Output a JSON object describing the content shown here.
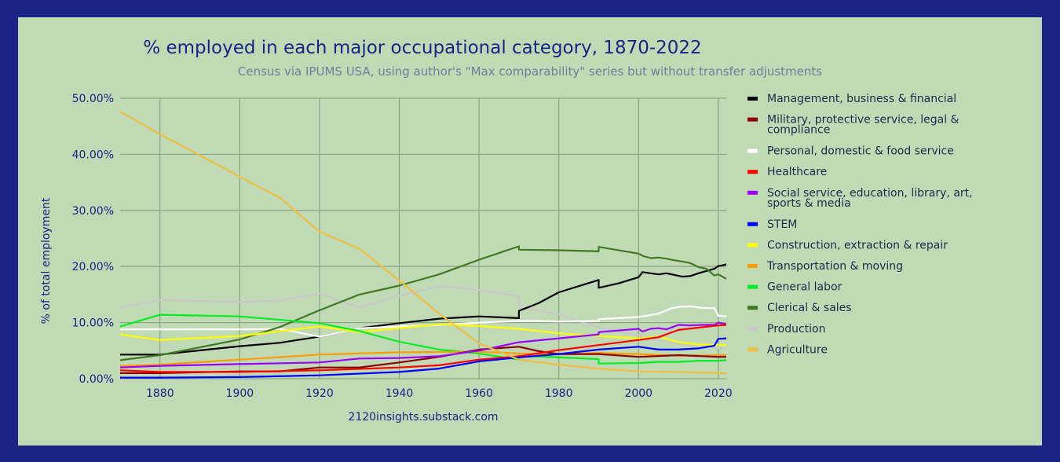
{
  "colors": {
    "page_border": "#1c2386",
    "plot_background": "#c1dab6",
    "title": "#1c2386",
    "subtitle": "#6f7f9a"
  },
  "chart_data": {
    "type": "line",
    "title": "% employed in each major occupational category, 1870-2022",
    "subtitle": "Census via IPUMS USA, using author's \"Max comparability\" series but without transfer adjustments",
    "ylabel": "% of total employment",
    "xlabel": "",
    "credit": "2120insights.substack.com",
    "xlim": [
      1870,
      2022
    ],
    "ylim": [
      0,
      50
    ],
    "x_ticks": [
      1880,
      1900,
      1920,
      1940,
      1960,
      1980,
      2000,
      2020
    ],
    "x_tick_labels": [
      "1880",
      "1900",
      "1920",
      "1940",
      "1960",
      "1980",
      "2000",
      "2020"
    ],
    "y_ticks": [
      0,
      10,
      20,
      30,
      40,
      50
    ],
    "y_tick_labels": [
      "0.00%",
      "10.00%",
      "20.00%",
      "30.00%",
      "40.00%",
      "50.00%"
    ],
    "grid": true,
    "legend_position": "right",
    "series": [
      {
        "name": "Management, business & financial",
        "legend_lines": [
          "Management, business & financial"
        ],
        "color": "#000000",
        "points": [
          [
            1870,
            4.3
          ],
          [
            1880,
            4.3
          ],
          [
            1900,
            5.8
          ],
          [
            1910,
            6.4
          ],
          [
            1920,
            7.5
          ],
          [
            1930,
            9.0
          ],
          [
            1940,
            9.9
          ],
          [
            1950,
            10.7
          ],
          [
            1960,
            11.1
          ],
          [
            1970,
            10.8
          ],
          [
            1970,
            12.1
          ],
          [
            1975,
            13.5
          ],
          [
            1980,
            15.4
          ],
          [
            1985,
            16.5
          ],
          [
            1990,
            17.6
          ],
          [
            1990,
            16.2
          ],
          [
            1995,
            17.0
          ],
          [
            2000,
            18.1
          ],
          [
            2001,
            19.0
          ],
          [
            2003,
            18.8
          ],
          [
            2005,
            18.6
          ],
          [
            2007,
            18.8
          ],
          [
            2009,
            18.5
          ],
          [
            2011,
            18.2
          ],
          [
            2013,
            18.3
          ],
          [
            2015,
            18.8
          ],
          [
            2017,
            19.2
          ],
          [
            2019,
            19.6
          ],
          [
            2020,
            20.1
          ],
          [
            2021,
            20.2
          ],
          [
            2022,
            20.4
          ]
        ]
      },
      {
        "name": "Military, protective service, legal & compliance",
        "legend_lines": [
          "Military, protective service, legal &",
          "compliance"
        ],
        "color": "#8b0000",
        "points": [
          [
            1870,
            1.0
          ],
          [
            1880,
            1.0
          ],
          [
            1900,
            1.3
          ],
          [
            1910,
            1.3
          ],
          [
            1920,
            2.0
          ],
          [
            1930,
            2.0
          ],
          [
            1940,
            2.9
          ],
          [
            1950,
            3.9
          ],
          [
            1960,
            5.2
          ],
          [
            1970,
            5.7
          ],
          [
            1975,
            4.9
          ],
          [
            1980,
            4.4
          ],
          [
            1990,
            4.4
          ],
          [
            2000,
            3.9
          ],
          [
            2010,
            4.2
          ],
          [
            2020,
            3.9
          ],
          [
            2022,
            3.9
          ]
        ]
      },
      {
        "name": "Personal, domestic & food service",
        "legend_lines": [
          "Personal, domestic & food service"
        ],
        "color": "#ffffff",
        "points": [
          [
            1870,
            8.8
          ],
          [
            1880,
            8.8
          ],
          [
            1900,
            8.8
          ],
          [
            1910,
            8.9
          ],
          [
            1920,
            7.5
          ],
          [
            1930,
            9.0
          ],
          [
            1940,
            9.3
          ],
          [
            1950,
            9.6
          ],
          [
            1960,
            10.0
          ],
          [
            1970,
            10.3
          ],
          [
            1975,
            10.3
          ],
          [
            1980,
            10.2
          ],
          [
            1990,
            10.3
          ],
          [
            1990,
            10.6
          ],
          [
            2000,
            11.0
          ],
          [
            2005,
            11.6
          ],
          [
            2008,
            12.5
          ],
          [
            2010,
            12.8
          ],
          [
            2013,
            12.9
          ],
          [
            2016,
            12.6
          ],
          [
            2019,
            12.6
          ],
          [
            2020,
            11.2
          ],
          [
            2022,
            11.1
          ]
        ]
      },
      {
        "name": "Healthcare",
        "legend_lines": [
          "Healthcare"
        ],
        "color": "#ff0000",
        "points": [
          [
            1870,
            1.5
          ],
          [
            1880,
            1.2
          ],
          [
            1900,
            1.2
          ],
          [
            1920,
            1.5
          ],
          [
            1940,
            2.0
          ],
          [
            1950,
            2.4
          ],
          [
            1960,
            3.4
          ],
          [
            1970,
            4.0
          ],
          [
            1980,
            5.1
          ],
          [
            1990,
            6.0
          ],
          [
            2000,
            6.9
          ],
          [
            2005,
            7.4
          ],
          [
            2010,
            8.7
          ],
          [
            2015,
            9.1
          ],
          [
            2020,
            9.5
          ],
          [
            2022,
            9.6
          ]
        ]
      },
      {
        "name": "Social service, education, library, art, sports & media",
        "legend_lines": [
          "Social service, education, library, art,",
          "sports & media"
        ],
        "color": "#9b00ff",
        "points": [
          [
            1870,
            2.0
          ],
          [
            1880,
            2.3
          ],
          [
            1900,
            2.6
          ],
          [
            1920,
            2.9
          ],
          [
            1930,
            3.6
          ],
          [
            1940,
            3.7
          ],
          [
            1950,
            4.0
          ],
          [
            1960,
            5.0
          ],
          [
            1970,
            6.5
          ],
          [
            1980,
            7.2
          ],
          [
            1990,
            7.9
          ],
          [
            1990,
            8.3
          ],
          [
            2000,
            8.9
          ],
          [
            2001,
            8.4
          ],
          [
            2003,
            8.9
          ],
          [
            2005,
            9.0
          ],
          [
            2007,
            8.8
          ],
          [
            2010,
            9.6
          ],
          [
            2013,
            9.5
          ],
          [
            2016,
            9.6
          ],
          [
            2019,
            9.6
          ],
          [
            2020,
            10.0
          ],
          [
            2022,
            9.7
          ]
        ]
      },
      {
        "name": "STEM",
        "legend_lines": [
          "STEM"
        ],
        "color": "#0000ff",
        "points": [
          [
            1870,
            0.2
          ],
          [
            1880,
            0.2
          ],
          [
            1900,
            0.3
          ],
          [
            1920,
            0.6
          ],
          [
            1940,
            1.2
          ],
          [
            1950,
            1.8
          ],
          [
            1960,
            3.1
          ],
          [
            1970,
            3.8
          ],
          [
            1980,
            4.4
          ],
          [
            1990,
            5.2
          ],
          [
            2000,
            5.7
          ],
          [
            2005,
            5.2
          ],
          [
            2010,
            5.2
          ],
          [
            2015,
            5.4
          ],
          [
            2019,
            5.9
          ],
          [
            2020,
            7.1
          ],
          [
            2022,
            7.2
          ]
        ]
      },
      {
        "name": "Construction, extraction & repair",
        "legend_lines": [
          "Construction, extraction & repair"
        ],
        "color": "#ffff00",
        "points": [
          [
            1870,
            7.9
          ],
          [
            1880,
            6.9
          ],
          [
            1900,
            7.6
          ],
          [
            1920,
            9.3
          ],
          [
            1930,
            8.3
          ],
          [
            1940,
            9.0
          ],
          [
            1950,
            9.7
          ],
          [
            1960,
            9.4
          ],
          [
            1970,
            8.9
          ],
          [
            1980,
            8.1
          ],
          [
            1990,
            7.6
          ],
          [
            2000,
            7.2
          ],
          [
            2005,
            7.5
          ],
          [
            2010,
            6.5
          ],
          [
            2015,
            6.1
          ],
          [
            2020,
            6.0
          ],
          [
            2022,
            6.0
          ]
        ]
      },
      {
        "name": "Transportation & moving",
        "legend_lines": [
          "Transportation & moving"
        ],
        "color": "#ff9c00",
        "points": [
          [
            1870,
            2.3
          ],
          [
            1880,
            2.5
          ],
          [
            1900,
            3.4
          ],
          [
            1920,
            4.3
          ],
          [
            1940,
            4.7
          ],
          [
            1960,
            4.8
          ],
          [
            1970,
            4.5
          ],
          [
            1980,
            4.3
          ],
          [
            1990,
            4.6
          ],
          [
            2000,
            4.4
          ],
          [
            2010,
            4.1
          ],
          [
            2022,
            4.2
          ]
        ]
      },
      {
        "name": "General labor",
        "legend_lines": [
          "General labor"
        ],
        "color": "#00ee22",
        "points": [
          [
            1870,
            9.3
          ],
          [
            1880,
            11.4
          ],
          [
            1900,
            11.1
          ],
          [
            1920,
            9.9
          ],
          [
            1930,
            8.5
          ],
          [
            1940,
            6.6
          ],
          [
            1950,
            5.2
          ],
          [
            1960,
            4.5
          ],
          [
            1970,
            3.4
          ],
          [
            1970,
            4.1
          ],
          [
            1980,
            3.8
          ],
          [
            1990,
            3.5
          ],
          [
            1990,
            2.7
          ],
          [
            2000,
            2.8
          ],
          [
            2005,
            3.0
          ],
          [
            2010,
            3.0
          ],
          [
            2015,
            3.2
          ],
          [
            2020,
            3.2
          ],
          [
            2022,
            3.3
          ]
        ]
      },
      {
        "name": "Clerical & sales",
        "legend_lines": [
          "Clerical & sales"
        ],
        "color": "#3f7a22",
        "points": [
          [
            1870,
            3.3
          ],
          [
            1880,
            4.2
          ],
          [
            1900,
            7.0
          ],
          [
            1910,
            9.2
          ],
          [
            1920,
            12.2
          ],
          [
            1930,
            15.0
          ],
          [
            1940,
            16.6
          ],
          [
            1950,
            18.6
          ],
          [
            1960,
            21.2
          ],
          [
            1970,
            23.6
          ],
          [
            1970,
            23.0
          ],
          [
            1980,
            22.9
          ],
          [
            1990,
            22.7
          ],
          [
            1990,
            23.5
          ],
          [
            2000,
            22.3
          ],
          [
            2001,
            21.9
          ],
          [
            2003,
            21.5
          ],
          [
            2005,
            21.6
          ],
          [
            2007,
            21.4
          ],
          [
            2009,
            21.1
          ],
          [
            2011,
            20.9
          ],
          [
            2013,
            20.6
          ],
          [
            2015,
            19.9
          ],
          [
            2017,
            19.6
          ],
          [
            2019,
            18.4
          ],
          [
            2020,
            18.6
          ],
          [
            2022,
            17.8
          ]
        ]
      },
      {
        "name": "Production",
        "legend_lines": [
          "Production"
        ],
        "color": "#c8c8c8",
        "points": [
          [
            1870,
            12.7
          ],
          [
            1880,
            14.0
          ],
          [
            1900,
            13.7
          ],
          [
            1910,
            13.9
          ],
          [
            1920,
            15.2
          ],
          [
            1930,
            12.7
          ],
          [
            1940,
            14.8
          ],
          [
            1950,
            16.5
          ],
          [
            1960,
            15.8
          ],
          [
            1970,
            14.7
          ],
          [
            1970,
            12.7
          ],
          [
            1980,
            11.5
          ],
          [
            1990,
            9.1
          ],
          [
            2000,
            7.7
          ],
          [
            2005,
            6.8
          ],
          [
            2010,
            6.2
          ],
          [
            2015,
            5.9
          ],
          [
            2020,
            5.5
          ],
          [
            2022,
            5.5
          ]
        ]
      },
      {
        "name": "Agriculture",
        "legend_lines": [
          "Agriculture"
        ],
        "color": "#f0c040",
        "points": [
          [
            1870,
            47.6
          ],
          [
            1880,
            43.6
          ],
          [
            1900,
            36.0
          ],
          [
            1910,
            32.3
          ],
          [
            1920,
            26.2
          ],
          [
            1930,
            23.2
          ],
          [
            1940,
            17.5
          ],
          [
            1950,
            11.6
          ],
          [
            1960,
            6.3
          ],
          [
            1970,
            3.4
          ],
          [
            1980,
            2.5
          ],
          [
            1990,
            1.8
          ],
          [
            2000,
            1.3
          ],
          [
            2010,
            1.2
          ],
          [
            2020,
            1.0
          ],
          [
            2022,
            1.0
          ]
        ]
      }
    ]
  }
}
